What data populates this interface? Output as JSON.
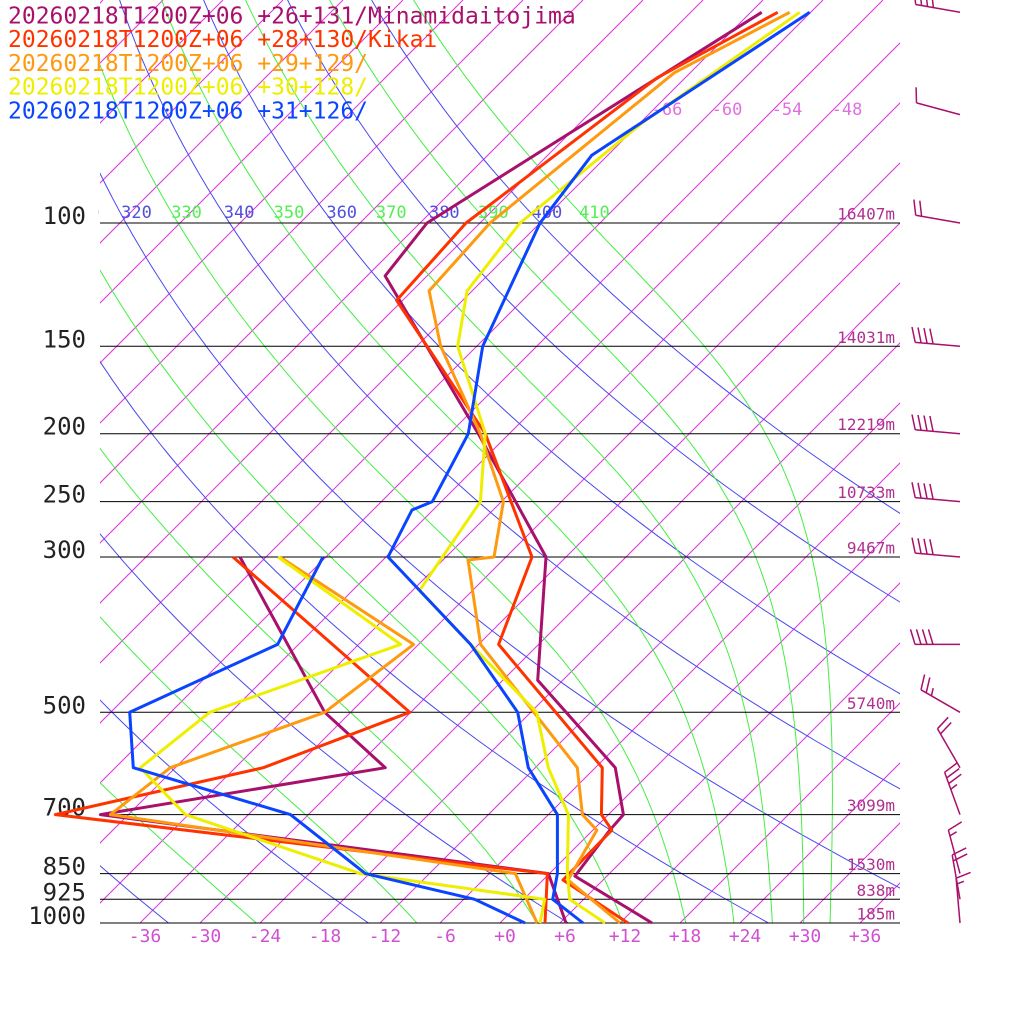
{
  "chart_data": {
    "type": "skewt",
    "ylim": [
      1000,
      50
    ],
    "xlim": [
      -40,
      40
    ],
    "log_y": true,
    "yticks": [
      100,
      150,
      200,
      250,
      300,
      500,
      700,
      850,
      925,
      1000
    ],
    "height_labels": [
      "16407m",
      "14031m",
      "12219m",
      "10733m",
      "9467m",
      "5740m",
      "3099m",
      "1530m",
      "838m",
      "185m"
    ],
    "xticks": [
      -36,
      -30,
      -24,
      -18,
      -12,
      -6,
      {
        "value": 0,
        "label": "+0"
      },
      {
        "value": 6,
        "label": "+6"
      },
      {
        "value": 12,
        "label": "+12"
      },
      {
        "value": 18,
        "label": "+18"
      },
      {
        "value": 24,
        "label": "+24"
      },
      {
        "value": 30,
        "label": "+30"
      },
      {
        "value": 36,
        "label": "+36"
      }
    ],
    "isotherms": [
      -132,
      -126,
      -120,
      -114,
      -108,
      -102,
      -96,
      -90,
      -84,
      -78,
      -72,
      -66,
      -60,
      -54,
      -48,
      -42,
      -36,
      -30,
      -24,
      -18,
      -12,
      -6,
      0,
      6,
      12,
      18,
      24,
      30,
      36
    ],
    "isotherm_labels": [
      -66,
      -60,
      -54,
      -48
    ],
    "dry_adiabats": [
      220,
      240,
      260,
      280,
      300,
      320,
      340,
      360,
      380,
      400
    ],
    "dry_adiabat_labels": [
      320,
      340,
      360,
      380,
      400
    ],
    "moist_adiabats": [
      250,
      270,
      290,
      310,
      330,
      350,
      370,
      390,
      410
    ],
    "moist_adiabat_labels": [
      310,
      330,
      350,
      370,
      390,
      410
    ],
    "series": [
      {
        "name": "20260218T1200Z+06 +26+131/Minamidaitojima",
        "color": "#a8106c",
        "pressure": [
          1000,
          857,
          737,
          700,
          600,
          450,
          300,
          200,
          119,
          100,
          50
        ],
        "temperature": [
          15.2,
          2.8,
          1.7,
          1.5,
          -4.0,
          -20.5,
          -32.0,
          -51.1,
          -76.2,
          -77.3,
          -64.9
        ],
        "dewpoint_pressure": [
          1000,
          850,
          700,
          600,
          500,
          300
        ],
        "dewpoint": [
          6.6,
          -0.1,
          -50.8,
          -27.0,
          -38.6,
          -62.6
        ]
      },
      {
        "name": "20260218T1200Z+06 +28+130/Kikai",
        "color": "#ff3300",
        "pressure": [
          1000,
          868,
          737,
          700,
          600,
          400,
          300,
          200,
          129,
          100,
          62,
          50
        ],
        "temperature": [
          12.8,
          2.0,
          1.9,
          -0.7,
          -5.3,
          -28.0,
          -33.4,
          -50.4,
          -72.6,
          -73.4,
          -68.8,
          -63.3
        ],
        "dewpoint_pressure": [
          1000,
          850,
          700,
          600,
          500,
          300
        ],
        "dewpoint": [
          4.5,
          -0.2,
          -55.3,
          -39.2,
          -30.1,
          -63.3
        ]
      },
      {
        "name": "20260218T1200Z+06 +29+129/",
        "color": "#ff9910",
        "pressure": [
          1000,
          868,
          737,
          700,
          600,
          400,
          303,
          300,
          250,
          200,
          150,
          125,
          100,
          61,
          50
        ],
        "temperature": [
          12.0,
          2.5,
          0.4,
          -2.6,
          -7.8,
          -29.8,
          -39.5,
          -37.2,
          -41.8,
          -50.9,
          -63.6,
          -70.3,
          -71.0,
          -67.6,
          -62.1
        ],
        "dewpoint_pressure": [
          1000,
          850,
          700,
          600,
          500,
          400,
          300
        ],
        "dewpoint": [
          3.7,
          -3.4,
          -49.8,
          -48.5,
          -38.6,
          -36.5,
          -58.6
        ]
      },
      {
        "name": "20260218T1200Z+06 +30+128/",
        "color": "#eeee00",
        "pressure": [
          1000,
          925,
          850,
          700,
          600,
          500,
          400,
          335,
          250,
          200,
          150,
          125,
          100,
          72,
          50
        ],
        "temperature": [
          10.5,
          4.6,
          1.8,
          -4.0,
          -10.7,
          -17.4,
          -30.8,
          -41.3,
          -44.1,
          -50.4,
          -61.9,
          -66.5,
          -68.0,
          -65.8,
          -61.1
        ],
        "dewpoint_pressure": [
          1000,
          925,
          850,
          700,
          600,
          500,
          400,
          300
        ],
        "dewpoint": [
          4.0,
          2.1,
          -18.9,
          -42.3,
          -51.5,
          -50.1,
          -37.8,
          -58.8
        ]
      },
      {
        "name": "20260218T1200Z+06 +31+126/",
        "color": "#0a44ff",
        "pressure": [
          1000,
          925,
          850,
          700,
          600,
          500,
          400,
          300,
          257,
          250,
          200,
          150,
          100,
          80,
          50
        ],
        "temperature": [
          8.3,
          2.9,
          0.8,
          -5.1,
          -12.7,
          -19.3,
          -30.8,
          -47.8,
          -50.1,
          -48.9,
          -52.1,
          -59.4,
          -66.0,
          -67.6,
          -60.1
        ],
        "dewpoint_pressure": [
          1000,
          925,
          850,
          700,
          600,
          500,
          400,
          300
        ],
        "dewpoint": [
          2.5,
          -4.9,
          -18.4,
          -31.8,
          -52.2,
          -58.1,
          -50.1,
          -54.3
        ]
      }
    ],
    "winds": {
      "pressure": [
        50,
        70,
        100,
        150,
        200,
        250,
        300,
        400,
        500,
        600,
        700,
        850,
        925,
        1000
      ],
      "direction": [
        280,
        285,
        280,
        275,
        275,
        275,
        275,
        270,
        300,
        330,
        340,
        345,
        350,
        355
      ],
      "speed": [
        40,
        10,
        20,
        40,
        40,
        40,
        40,
        40,
        25,
        20,
        35,
        15,
        20,
        15
      ],
      "color": "#a8106c"
    }
  }
}
